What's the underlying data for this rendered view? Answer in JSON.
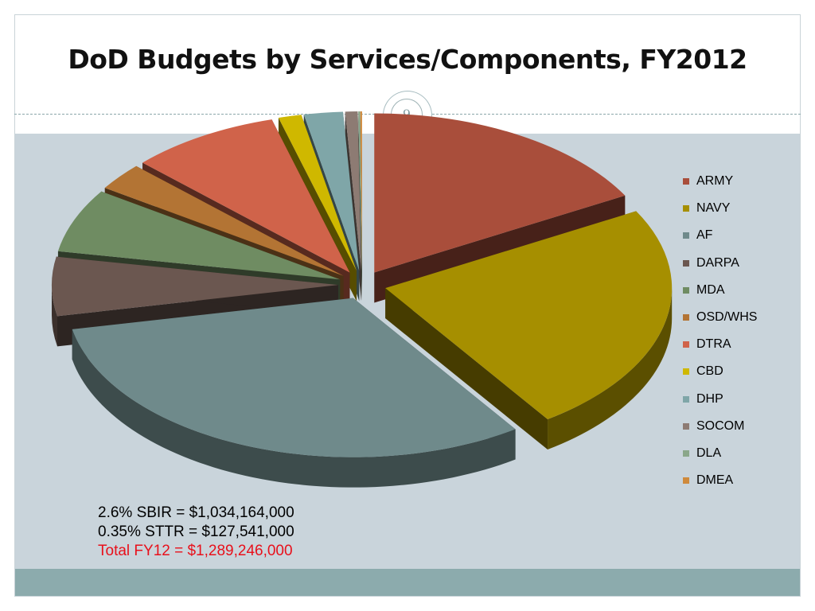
{
  "slide": {
    "title": "DoD Budgets by Services/Components, FY2012",
    "page_number": "9"
  },
  "chart_data": {
    "type": "pie",
    "style": "3d-exploded",
    "legend_position": "right",
    "categories": [
      "ARMY",
      "NAVY",
      "AF",
      "DARPA",
      "MDA",
      "OSD/WHS",
      "DTRA",
      "CBD",
      "DHP",
      "SOCOM",
      "DLA",
      "DMEA"
    ],
    "values": [
      17.0,
      23.5,
      31.5,
      6.0,
      6.5,
      2.8,
      8.5,
      1.3,
      2.2,
      0.7,
      0.1,
      0.1
    ],
    "unit": "approximate share of total (%)",
    "colors": [
      "#a94e3b",
      "#a68f00",
      "#6f8a8b",
      "#6b5750",
      "#6f8c62",
      "#b37434",
      "#d0634a",
      "#cfb800",
      "#7fa6a8",
      "#8d7b73",
      "#8aa78a",
      "#cf8a3c"
    ]
  },
  "notes": {
    "sbir": "2.6% SBIR = $1,034,164,000",
    "sttr": "0.35% STTR = $127,541,000",
    "total": "Total FY12 = $1,289,246,000"
  }
}
